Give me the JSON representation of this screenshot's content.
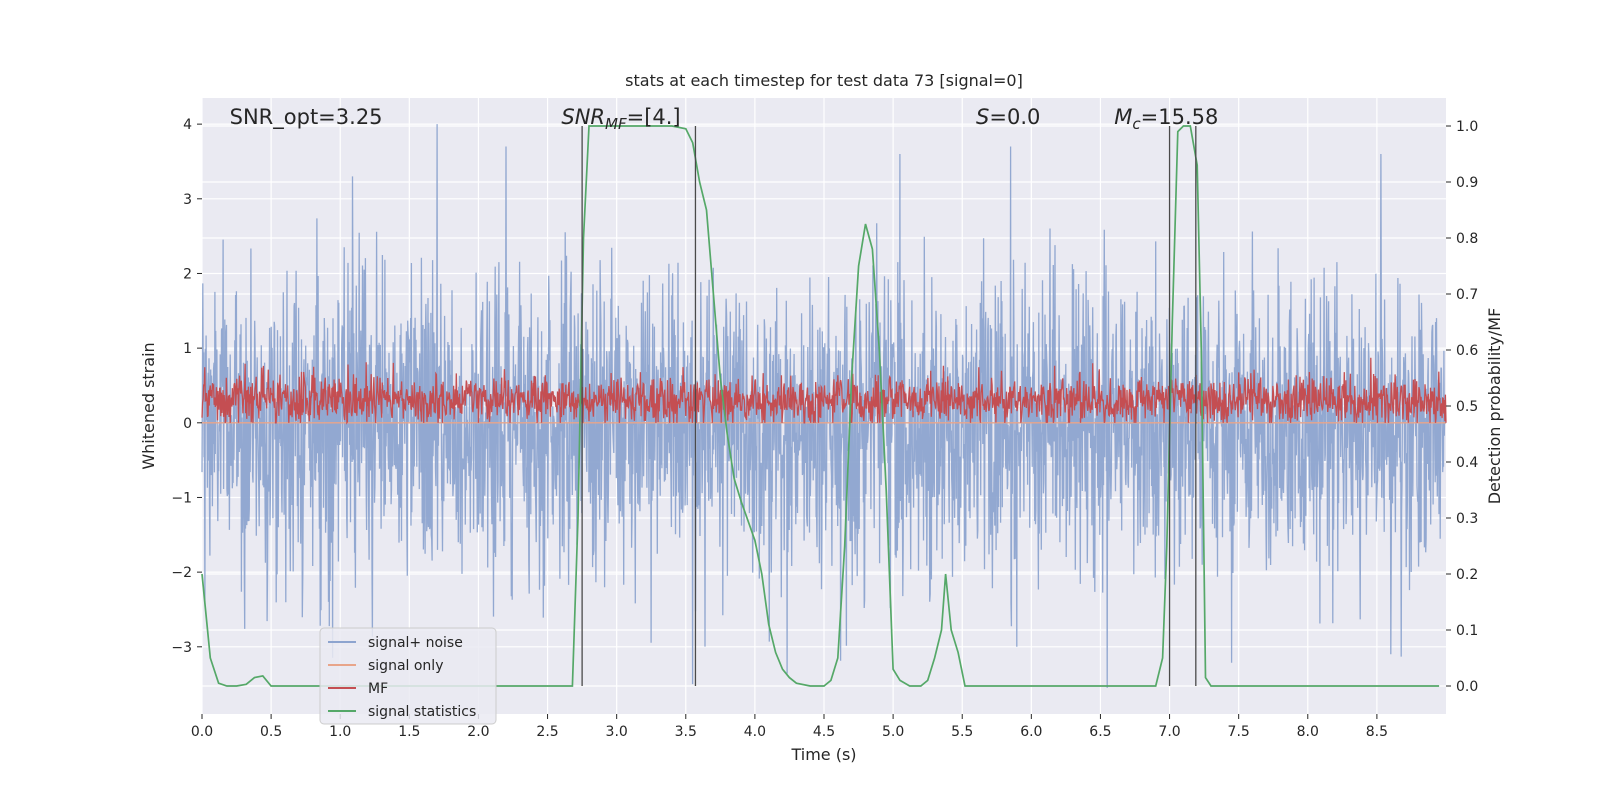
{
  "chart_data": {
    "type": "line",
    "title": "stats at each timestep for test data 73 [signal=0]",
    "xlabel": "Time (s)",
    "ylabel": "Whitened strain",
    "y2label": "Detection probability/MF",
    "xlim": [
      0.0,
      9.0
    ],
    "ylim": [
      -3.9,
      4.35
    ],
    "y2lim": [
      -0.05,
      1.05
    ],
    "xticks": [
      0.0,
      0.5,
      1.0,
      1.5,
      2.0,
      2.5,
      3.0,
      3.5,
      4.0,
      4.5,
      5.0,
      5.5,
      6.0,
      6.5,
      7.0,
      7.5,
      8.0,
      8.5
    ],
    "xtick_labels": [
      "0.0",
      "0.5",
      "1.0",
      "1.5",
      "2.0",
      "2.5",
      "3.0",
      "3.5",
      "4.0",
      "4.5",
      "5.0",
      "5.5",
      "6.0",
      "6.5",
      "7.0",
      "7.5",
      "8.0",
      "8.5"
    ],
    "yticks": [
      -3,
      -2,
      -1,
      0,
      1,
      2,
      3,
      4
    ],
    "ytick_labels": [
      "−3",
      "−2",
      "−1",
      "0",
      "1",
      "2",
      "3",
      "4"
    ],
    "y2ticks": [
      0.0,
      0.1,
      0.2,
      0.3,
      0.4,
      0.5,
      0.6,
      0.7,
      0.8,
      0.9,
      1.0
    ],
    "y2tick_labels": [
      "0.0",
      "0.1",
      "0.2",
      "0.3",
      "0.4",
      "0.5",
      "0.6",
      "0.7",
      "0.8",
      "0.9",
      "1.0"
    ],
    "grid": true,
    "legend_position": "lower-left",
    "annotations": [
      {
        "text": "SNR_opt=3.25",
        "italic": false,
        "x": 0.2
      },
      {
        "text": "SNR_MF=[4.]",
        "italic": true,
        "x": 2.6
      },
      {
        "text": "S=0.0",
        "italic": true,
        "x": 5.6
      },
      {
        "text": "M_c=15.58",
        "italic": true,
        "x": 6.6
      }
    ],
    "vertical_lines": [
      2.75,
      3.57,
      7.0,
      7.19
    ],
    "series": [
      {
        "name": "signal+ noise",
        "color": "#8da4cf",
        "axis": "left",
        "kind": "noise",
        "amplitude_sigma": 1.0,
        "sample_step": 0.003,
        "spikes": [
          {
            "x": 1.7,
            "y": 4.0
          },
          {
            "x": 1.09,
            "y": 3.3
          },
          {
            "x": 2.2,
            "y": 3.7
          },
          {
            "x": 5.05,
            "y": 3.6
          },
          {
            "x": 5.85,
            "y": 3.7
          },
          {
            "x": 8.53,
            "y": 3.6
          },
          {
            "x": 0.02,
            "y": -2.4
          },
          {
            "x": 3.55,
            "y": -3.5
          },
          {
            "x": 6.55,
            "y": -3.55
          },
          {
            "x": 8.6,
            "y": -3.1
          }
        ]
      },
      {
        "name": "signal only",
        "color": "#e8a58a",
        "axis": "left",
        "kind": "flat",
        "y": 0.0
      },
      {
        "name": "MF",
        "color": "#c44e52",
        "axis": "left",
        "kind": "noise",
        "mean": 0.3,
        "amplitude_sigma": 0.17,
        "min": 0.0,
        "max": 1.0,
        "sample_step": 0.004
      },
      {
        "name": "signal statistics",
        "color": "#55a868",
        "axis": "right",
        "kind": "line",
        "x": [
          0.0,
          0.06,
          0.12,
          0.18,
          0.25,
          0.32,
          0.38,
          0.44,
          0.5,
          0.56,
          0.62,
          0.7,
          0.8,
          0.9,
          1.0,
          1.5,
          2.0,
          2.5,
          2.68,
          2.72,
          2.76,
          2.8,
          2.85,
          3.0,
          3.2,
          3.4,
          3.5,
          3.55,
          3.6,
          3.65,
          3.7,
          3.75,
          3.8,
          3.85,
          3.9,
          4.0,
          4.05,
          4.1,
          4.15,
          4.2,
          4.25,
          4.3,
          4.4,
          4.5,
          4.55,
          4.6,
          4.65,
          4.7,
          4.75,
          4.8,
          4.85,
          4.9,
          4.95,
          5.0,
          5.05,
          5.12,
          5.2,
          5.25,
          5.3,
          5.35,
          5.38,
          5.42,
          5.47,
          5.52,
          5.6,
          6.0,
          6.5,
          6.9,
          6.95,
          6.98,
          7.02,
          7.06,
          7.1,
          7.15,
          7.2,
          7.23,
          7.26,
          7.3,
          7.5,
          8.0,
          8.5,
          8.95
        ],
        "y": [
          0.2,
          0.05,
          0.005,
          0.0,
          0.0,
          0.003,
          0.015,
          0.018,
          0.0,
          0.0,
          0.0,
          0.0,
          0.0,
          0.0,
          0.0,
          0.0,
          0.0,
          0.0,
          0.0,
          0.3,
          0.8,
          1.0,
          1.0,
          1.0,
          1.0,
          1.0,
          0.995,
          0.97,
          0.9,
          0.85,
          0.7,
          0.55,
          0.45,
          0.37,
          0.33,
          0.26,
          0.2,
          0.11,
          0.06,
          0.03,
          0.015,
          0.005,
          0.0,
          0.0,
          0.01,
          0.05,
          0.25,
          0.55,
          0.75,
          0.825,
          0.78,
          0.6,
          0.35,
          0.03,
          0.01,
          0.0,
          0.0,
          0.01,
          0.05,
          0.1,
          0.2,
          0.1,
          0.06,
          0.0,
          0.0,
          0.0,
          0.0,
          0.0,
          0.05,
          0.25,
          0.65,
          0.99,
          1.0,
          1.0,
          0.93,
          0.6,
          0.015,
          0.0,
          0.0,
          0.0,
          0.0,
          0.0
        ]
      }
    ]
  }
}
